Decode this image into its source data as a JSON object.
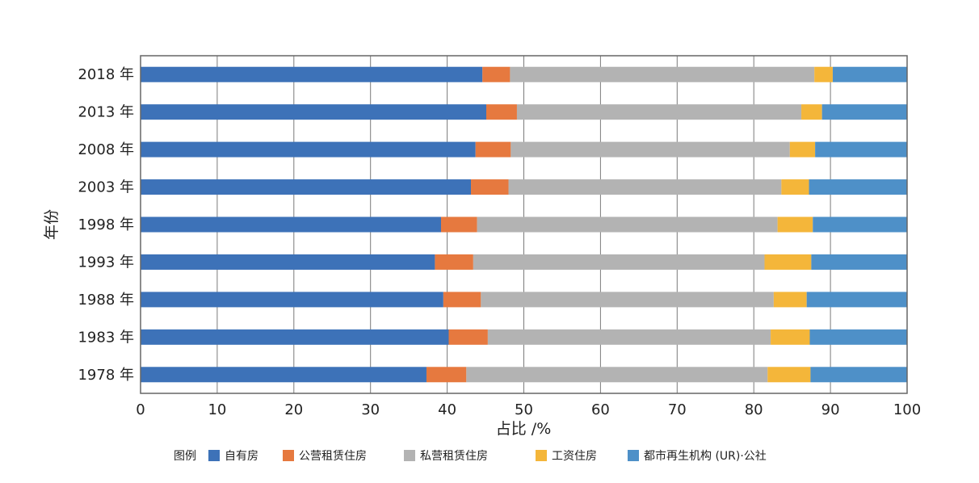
{
  "chart_data": {
    "type": "bar",
    "orientation": "horizontal",
    "stacked": true,
    "xlabel": "占比 /%",
    "ylabel": "年份",
    "xlim": [
      0,
      100
    ],
    "xticks": [
      0,
      10,
      20,
      30,
      40,
      50,
      60,
      70,
      80,
      90,
      100
    ],
    "grid": "vertical",
    "legend_title": "图例",
    "legend_position": "bottom",
    "categories": [
      "2018 年",
      "2013 年",
      "2008 年",
      "2003 年",
      "1998 年",
      "1993 年",
      "1988 年",
      "1983 年",
      "1978 年"
    ],
    "series": [
      {
        "name": "自有房",
        "color": "#3d72b8",
        "values": [
          44.6,
          45.1,
          43.7,
          43.1,
          39.2,
          38.4,
          39.5,
          40.2,
          37.3
        ]
      },
      {
        "name": "公营租赁住房",
        "color": "#e6793f",
        "values": [
          3.6,
          4.0,
          4.6,
          4.9,
          4.7,
          5.0,
          4.9,
          5.1,
          5.2
        ]
      },
      {
        "name": "私营租赁住房",
        "color": "#b3b3b3",
        "values": [
          39.7,
          37.1,
          36.4,
          35.6,
          39.2,
          38.0,
          38.2,
          36.9,
          39.3
        ]
      },
      {
        "name": "工资住房",
        "color": "#f4b63a",
        "values": [
          2.4,
          2.7,
          3.3,
          3.6,
          4.6,
          6.1,
          4.3,
          5.1,
          5.6
        ]
      },
      {
        "name": "都市再生机构 (UR)·公社",
        "color": "#4e90c8",
        "values": [
          9.7,
          11.1,
          12.0,
          12.8,
          12.3,
          12.5,
          13.1,
          12.7,
          12.6
        ]
      }
    ]
  }
}
